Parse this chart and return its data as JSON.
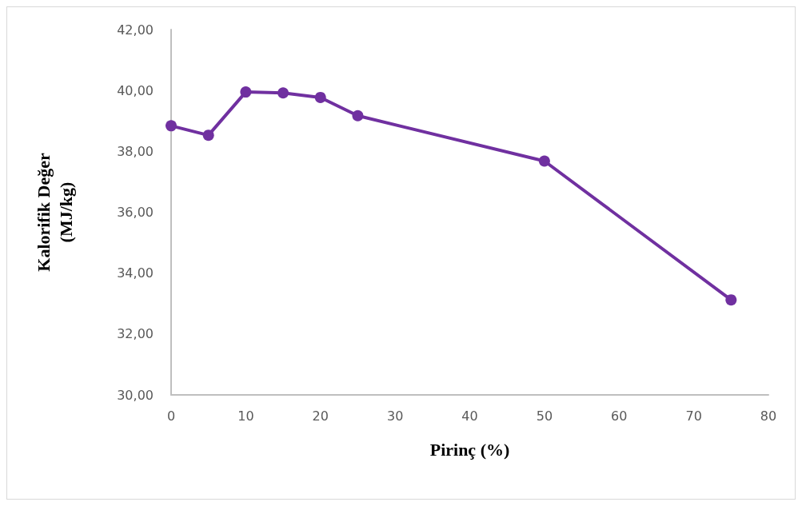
{
  "chart_data": {
    "type": "line",
    "xlabel": "Pirinç (%)",
    "ylabel": "Kalorifik Değer\n(MJ/kg)",
    "x": [
      0,
      5,
      10,
      15,
      20,
      25,
      50,
      75
    ],
    "series": [
      {
        "color": "#7030a0",
        "values": [
          38.84,
          38.53,
          39.95,
          39.92,
          39.77,
          39.17,
          37.68,
          33.12
        ]
      }
    ],
    "xlim": [
      0,
      80
    ],
    "xticks": [
      0,
      10,
      20,
      30,
      40,
      50,
      60,
      70,
      80
    ],
    "ylim": [
      30,
      42
    ],
    "yticks": [
      {
        "value": 30,
        "label": "30,00"
      },
      {
        "value": 32,
        "label": "32,00"
      },
      {
        "value": 34,
        "label": "34,00"
      },
      {
        "value": 36,
        "label": "36,00"
      },
      {
        "value": 38,
        "label": "38,00"
      },
      {
        "value": 40,
        "label": "40,00"
      },
      {
        "value": 42,
        "label": "42,00"
      }
    ],
    "grid": false,
    "marker": "circle",
    "line_style": "solid"
  }
}
